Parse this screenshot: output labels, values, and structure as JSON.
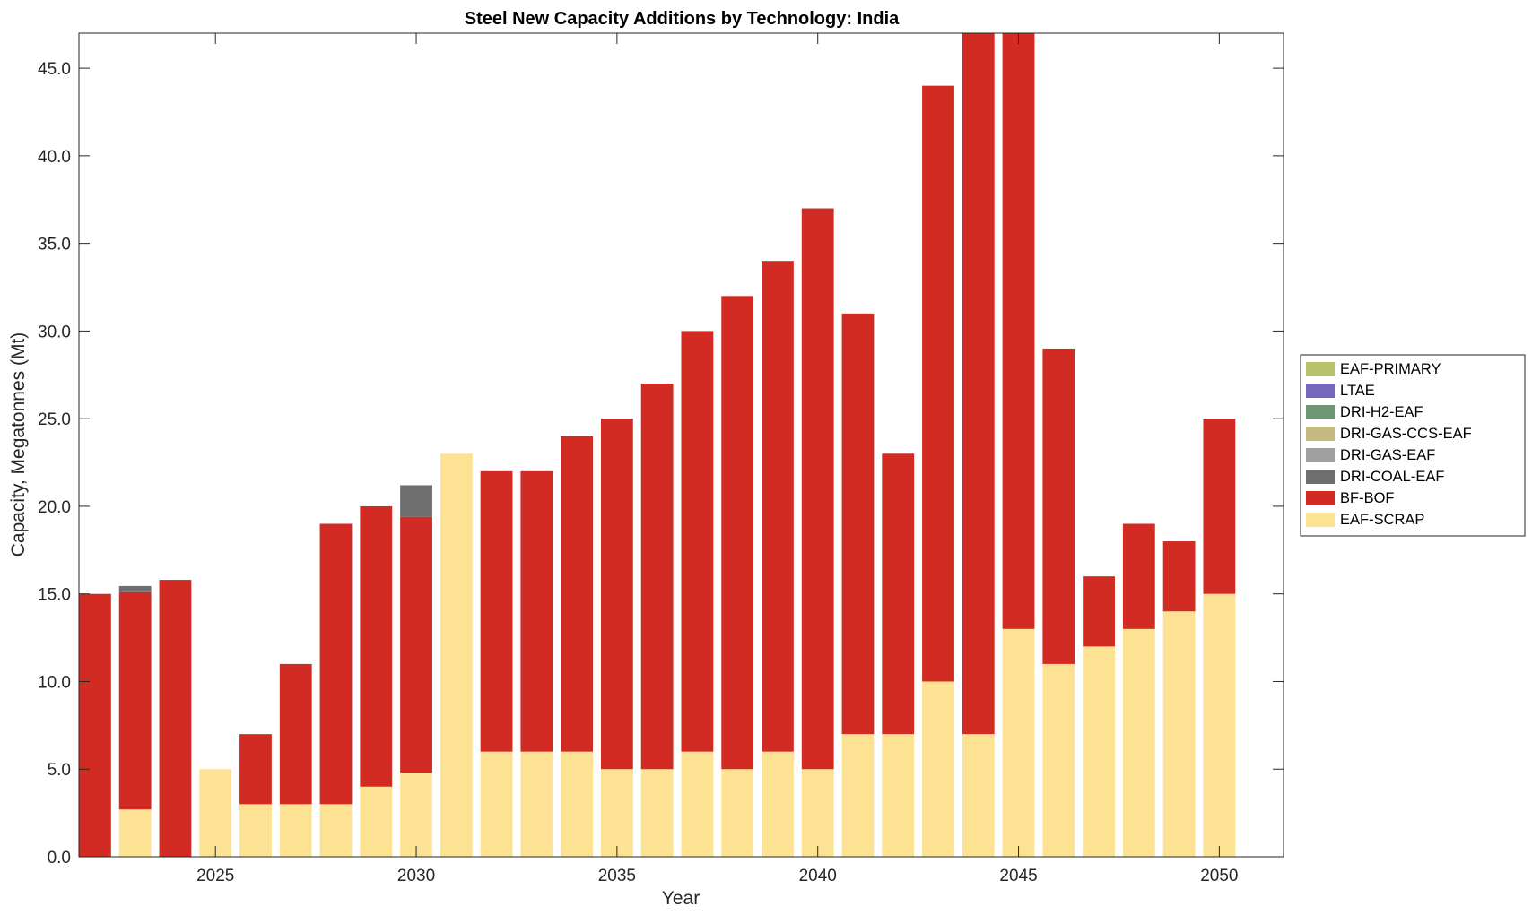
{
  "chart_data": {
    "type": "bar",
    "stacked": true,
    "title": "Steel New Capacity Additions by Technology: India",
    "xlabel": "Year",
    "ylabel": "Capacity, Megatonnes (Mt)",
    "ylim": [
      0,
      47
    ],
    "xlim": [
      2021.6,
      2051.6
    ],
    "xticks": [
      2025,
      2030,
      2035,
      2040,
      2045,
      2050
    ],
    "yticks": [
      0,
      5,
      10,
      15,
      20,
      25,
      30,
      35,
      40,
      45
    ],
    "ytick_labels": [
      "0.0",
      "5.0",
      "10.0",
      "15.0",
      "20.0",
      "25.0",
      "30.0",
      "35.0",
      "40.0",
      "45.0"
    ],
    "grid": false,
    "legend_position": "right",
    "categories": [
      2022,
      2023,
      2024,
      2025,
      2026,
      2027,
      2028,
      2029,
      2030,
      2031,
      2032,
      2033,
      2034,
      2035,
      2036,
      2037,
      2038,
      2039,
      2040,
      2041,
      2042,
      2043,
      2044,
      2045,
      2046,
      2047,
      2048,
      2049,
      2050
    ],
    "series": [
      {
        "name": "EAF-SCRAP",
        "color": "#fde293",
        "values": [
          0,
          2.7,
          0,
          5,
          3,
          3,
          3,
          4,
          4.8,
          23,
          6,
          6,
          6,
          5,
          5,
          6,
          5,
          6,
          5,
          7,
          7,
          10,
          7,
          13,
          11,
          12,
          13,
          14,
          15
        ]
      },
      {
        "name": "BF-BOF",
        "color": "#d22b24",
        "values": [
          15,
          12.4,
          15.8,
          0,
          4,
          8,
          16,
          16,
          14.6,
          0,
          16,
          16,
          18,
          20,
          22,
          24,
          27,
          28,
          32,
          24,
          16,
          34,
          40,
          34,
          18,
          4,
          6,
          4,
          10
        ]
      },
      {
        "name": "DRI-COAL-EAF",
        "color": "#6e6e6e",
        "values": [
          0,
          0.35,
          0,
          0,
          0,
          0,
          0,
          0,
          1.8,
          0,
          0,
          0,
          0,
          0,
          0,
          0,
          0,
          0,
          0,
          0,
          0,
          0,
          0,
          0,
          0,
          0,
          0,
          0,
          0
        ]
      },
      {
        "name": "DRI-GAS-EAF",
        "color": "#a0a0a0",
        "values": [
          0,
          0,
          0,
          0,
          0,
          0,
          0,
          0,
          0,
          0,
          0,
          0,
          0,
          0,
          0,
          0,
          0,
          0,
          0,
          0,
          0,
          0,
          0,
          0,
          0,
          0,
          0,
          0,
          0
        ]
      },
      {
        "name": "DRI-GAS-CCS-EAF",
        "color": "#c4bb80",
        "values": [
          0,
          0,
          0,
          0,
          0,
          0,
          0,
          0,
          0,
          0,
          0,
          0,
          0,
          0,
          0,
          0,
          0,
          0,
          0,
          0,
          0,
          0,
          0,
          0,
          0,
          0,
          0,
          0,
          0
        ]
      },
      {
        "name": "DRI-H2-EAF",
        "color": "#6f9677",
        "values": [
          0,
          0,
          0,
          0,
          0,
          0,
          0,
          0,
          0,
          0,
          0,
          0,
          0,
          0,
          0,
          0,
          0,
          0,
          0,
          0,
          0,
          0,
          0,
          0,
          0,
          0,
          0,
          0,
          0
        ]
      },
      {
        "name": "LTAE",
        "color": "#7467bd",
        "values": [
          0,
          0,
          0,
          0,
          0,
          0,
          0,
          0,
          0,
          0,
          0,
          0,
          0,
          0,
          0,
          0,
          0,
          0,
          0,
          0,
          0,
          0,
          0,
          0,
          0,
          0,
          0,
          0,
          0
        ]
      },
      {
        "name": "EAF-PRIMARY",
        "color": "#b8c26a",
        "values": [
          0,
          0,
          0,
          0,
          0,
          0,
          0,
          0,
          0,
          0,
          0,
          0,
          0,
          0,
          0,
          0,
          0,
          0,
          0,
          0,
          0,
          0,
          0,
          0,
          0,
          0,
          0,
          0,
          0
        ]
      }
    ],
    "legend_order": [
      "EAF-PRIMARY",
      "LTAE",
      "DRI-H2-EAF",
      "DRI-GAS-CCS-EAF",
      "DRI-GAS-EAF",
      "DRI-COAL-EAF",
      "BF-BOF",
      "EAF-SCRAP"
    ]
  }
}
